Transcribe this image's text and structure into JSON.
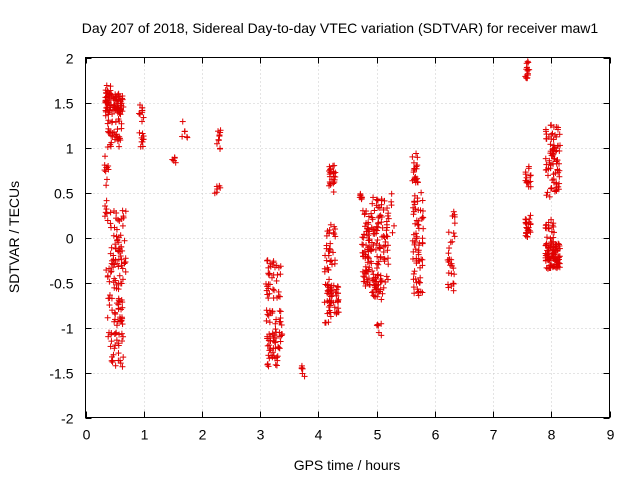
{
  "chart_data": {
    "type": "scatter",
    "title": "Day 207 of 2018, Sidereal Day-to-day VTEC variation (SDTVAR) for receiver maw1",
    "xlabel": "GPS time / hours",
    "ylabel": "SDTVAR / TECUs",
    "xlim": [
      0,
      9
    ],
    "ylim": [
      -2,
      2
    ],
    "xticks": [
      "0",
      "1",
      "2",
      "3",
      "4",
      "5",
      "6",
      "7",
      "8",
      "9"
    ],
    "yticks": [
      "2",
      "1.5",
      "1",
      "0.5",
      "0",
      "-0.5",
      "-1",
      "-1.5",
      "-2"
    ],
    "grid": true,
    "marker": "plus",
    "color": "#e00000",
    "clusters": [
      {
        "x": [
          0.33,
          0.45
        ],
        "y": [
          1.35,
          1.7
        ],
        "n": 40
      },
      {
        "x": [
          0.38,
          0.62
        ],
        "y": [
          1.0,
          1.6
        ],
        "n": 60
      },
      {
        "x": [
          0.45,
          0.65
        ],
        "y": [
          1.4,
          1.6
        ],
        "n": 30
      },
      {
        "x": [
          0.32,
          0.42
        ],
        "y": [
          0.2,
          0.95
        ],
        "n": 15
      },
      {
        "x": [
          0.35,
          0.7
        ],
        "y": [
          -0.5,
          0.3
        ],
        "n": 70
      },
      {
        "x": [
          0.38,
          0.65
        ],
        "y": [
          -1.45,
          -0.5
        ],
        "n": 70
      },
      {
        "x": [
          0.92,
          1.0
        ],
        "y": [
          1.0,
          1.48
        ],
        "n": 20
      },
      {
        "x": [
          1.48,
          1.55
        ],
        "y": [
          0.8,
          0.9
        ],
        "n": 6
      },
      {
        "x": [
          1.65,
          1.75
        ],
        "y": [
          1.1,
          1.3
        ],
        "n": 6
      },
      {
        "x": [
          2.25,
          2.32
        ],
        "y": [
          0.8,
          1.2
        ],
        "n": 10
      },
      {
        "x": [
          2.22,
          2.32
        ],
        "y": [
          0.48,
          0.65
        ],
        "n": 6
      },
      {
        "x": [
          3.1,
          3.25
        ],
        "y": [
          -1.0,
          -0.25
        ],
        "n": 35
      },
      {
        "x": [
          3.12,
          3.3
        ],
        "y": [
          -1.45,
          -1.05
        ],
        "n": 30
      },
      {
        "x": [
          3.25,
          3.38
        ],
        "y": [
          -1.35,
          -0.3
        ],
        "n": 35
      },
      {
        "x": [
          3.7,
          3.78
        ],
        "y": [
          -1.55,
          -1.4
        ],
        "n": 6
      },
      {
        "x": [
          4.1,
          4.22
        ],
        "y": [
          -0.95,
          0.1
        ],
        "n": 35
      },
      {
        "x": [
          4.15,
          4.35
        ],
        "y": [
          -0.85,
          -0.5
        ],
        "n": 40
      },
      {
        "x": [
          4.18,
          4.3
        ],
        "y": [
          0.5,
          0.8
        ],
        "n": 25
      },
      {
        "x": [
          4.18,
          4.3
        ],
        "y": [
          -0.3,
          0.2
        ],
        "n": 15
      },
      {
        "x": [
          4.68,
          4.75
        ],
        "y": [
          0.42,
          0.5
        ],
        "n": 8
      },
      {
        "x": [
          4.75,
          4.92
        ],
        "y": [
          -0.55,
          0.3
        ],
        "n": 70
      },
      {
        "x": [
          4.92,
          5.2
        ],
        "y": [
          -0.7,
          0.45
        ],
        "n": 110
      },
      {
        "x": [
          5.0,
          5.1
        ],
        "y": [
          -1.1,
          -0.95
        ],
        "n": 6
      },
      {
        "x": [
          5.2,
          5.3
        ],
        "y": [
          0.05,
          0.5
        ],
        "n": 6
      },
      {
        "x": [
          5.6,
          5.72
        ],
        "y": [
          0.6,
          0.95
        ],
        "n": 20
      },
      {
        "x": [
          5.62,
          5.8
        ],
        "y": [
          -0.65,
          0.5
        ],
        "n": 70
      },
      {
        "x": [
          6.22,
          6.35
        ],
        "y": [
          -0.6,
          0.3
        ],
        "n": 30
      },
      {
        "x": [
          7.55,
          7.62
        ],
        "y": [
          1.75,
          1.96
        ],
        "n": 15
      },
      {
        "x": [
          7.55,
          7.65
        ],
        "y": [
          0.55,
          0.8
        ],
        "n": 15
      },
      {
        "x": [
          7.55,
          7.65
        ],
        "y": [
          0.0,
          0.25
        ],
        "n": 25
      },
      {
        "x": [
          7.9,
          8.15
        ],
        "y": [
          0.45,
          1.25
        ],
        "n": 80
      },
      {
        "x": [
          7.9,
          8.05
        ],
        "y": [
          -0.15,
          0.2
        ],
        "n": 20
      },
      {
        "x": [
          7.9,
          8.15
        ],
        "y": [
          -0.35,
          -0.05
        ],
        "n": 90
      }
    ]
  }
}
